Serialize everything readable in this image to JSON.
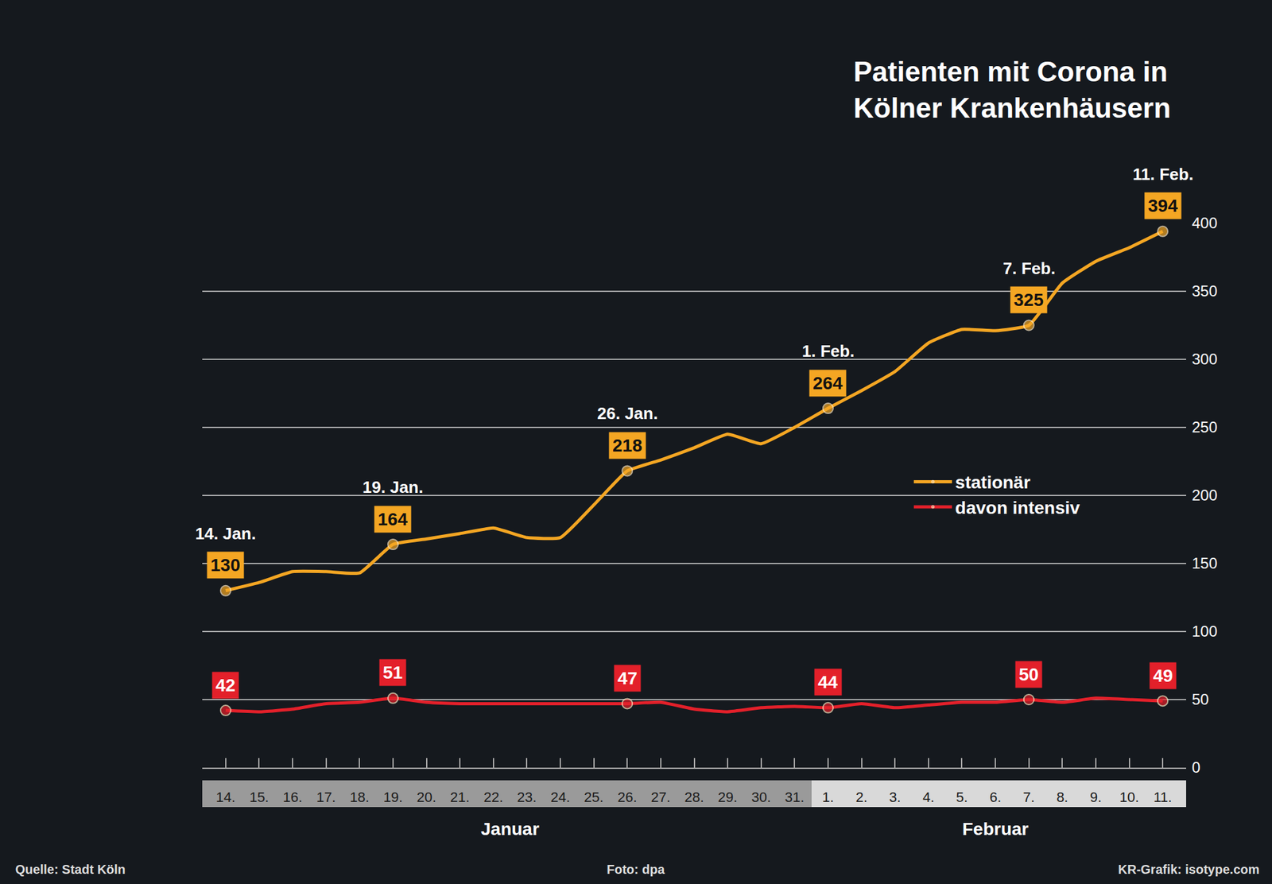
{
  "chart_data": {
    "type": "line",
    "title": "Patienten mit Corona in Kölner Krankenhäusern",
    "categories": [
      "14.",
      "15.",
      "16.",
      "17.",
      "18.",
      "19.",
      "20.",
      "21.",
      "22.",
      "23.",
      "24.",
      "25.",
      "26.",
      "27.",
      "28.",
      "29.",
      "30.",
      "31.",
      "1.",
      "2.",
      "3.",
      "4.",
      "5.",
      "6.",
      "7.",
      "8.",
      "9.",
      "10.",
      "11."
    ],
    "month_labels": [
      {
        "text": "Januar",
        "start": "14.",
        "end": "31."
      },
      {
        "text": "Februar",
        "start": "1.",
        "end": "11."
      }
    ],
    "series": [
      {
        "name": "stationär",
        "color": "#f4a623",
        "marker": "circle",
        "values": [
          130,
          136,
          144,
          144,
          143,
          164,
          168,
          172,
          176,
          169,
          169,
          193,
          218,
          226,
          235,
          245,
          238,
          250,
          264,
          277,
          291,
          312,
          322,
          321,
          325,
          356,
          372,
          382,
          394
        ],
        "value_labels": [
          "130",
          null,
          null,
          null,
          null,
          "164",
          null,
          null,
          null,
          null,
          null,
          null,
          "218",
          null,
          null,
          null,
          null,
          null,
          "264",
          null,
          null,
          null,
          null,
          null,
          "325",
          null,
          null,
          null,
          "394"
        ]
      },
      {
        "name": "davon intensiv",
        "color": "#e3202a",
        "marker": "circle",
        "values": [
          42,
          41,
          43,
          47,
          48,
          51,
          48,
          47,
          47,
          47,
          47,
          47,
          47,
          48,
          43,
          41,
          44,
          45,
          44,
          47,
          44,
          46,
          48,
          48,
          50,
          48,
          51,
          50,
          49
        ],
        "value_labels": [
          "42",
          null,
          null,
          null,
          null,
          "51",
          null,
          null,
          null,
          null,
          null,
          null,
          "47",
          null,
          null,
          null,
          null,
          null,
          "44",
          null,
          null,
          null,
          null,
          null,
          "50",
          null,
          null,
          null,
          "49"
        ]
      }
    ],
    "annotations": [
      {
        "x": "14.",
        "text": "14. Jan."
      },
      {
        "x": "19.",
        "text": "19. Jan."
      },
      {
        "x": "26.",
        "text": "26. Jan."
      },
      {
        "x": "1.",
        "text": "1. Feb."
      },
      {
        "x": "7.",
        "text": "7. Feb."
      },
      {
        "x": "11.",
        "text": "11. Feb."
      }
    ],
    "ylim": [
      0,
      400
    ],
    "yticks": [
      0,
      50,
      100,
      150,
      200,
      250,
      300,
      350,
      400
    ],
    "grid": true,
    "legend": "right",
    "data_labels": true,
    "source": "Quelle: Stadt Köln",
    "credits": [
      "Foto: dpa",
      "KR-Grafik: isotype.com"
    ]
  }
}
